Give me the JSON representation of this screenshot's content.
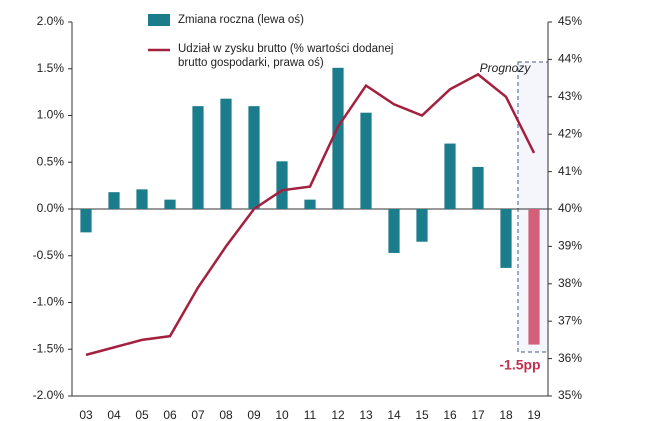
{
  "chart_data": {
    "type": "bar_line",
    "categories": [
      "03",
      "04",
      "05",
      "06",
      "07",
      "08",
      "09",
      "10",
      "11",
      "12",
      "13",
      "14",
      "15",
      "16",
      "17",
      "18",
      "19"
    ],
    "series": [
      {
        "name": "Zmiana roczna (lewa oś)",
        "type": "bar",
        "axis": "y",
        "color": "#1b7d8c",
        "colors": [
          "#1b7d8c",
          "#1b7d8c",
          "#1b7d8c",
          "#1b7d8c",
          "#1b7d8c",
          "#1b7d8c",
          "#1b7d8c",
          "#1b7d8c",
          "#1b7d8c",
          "#1b7d8c",
          "#1b7d8c",
          "#1b7d8c",
          "#1b7d8c",
          "#1b7d8c",
          "#1b7d8c",
          "#1b7d8c",
          "#d35f7a"
        ],
        "values": [
          -0.25,
          0.18,
          0.21,
          0.1,
          1.1,
          1.18,
          1.1,
          0.51,
          0.1,
          1.51,
          1.03,
          -0.47,
          -0.35,
          0.7,
          0.45,
          -0.63,
          -1.45
        ]
      },
      {
        "name": "Udział w zysku brutto (%  wartości dodanej brutto gospodarki, prawa oś)",
        "type": "line",
        "axis": "y2",
        "color": "#a3203f",
        "values": [
          36.1,
          36.3,
          36.5,
          36.6,
          37.9,
          39.0,
          40.0,
          40.5,
          40.6,
          42.2,
          43.3,
          42.8,
          42.5,
          43.2,
          43.6,
          43.0,
          41.5
        ]
      }
    ],
    "ylim": [
      -2,
      2
    ],
    "yticks": [
      {
        "value": -2,
        "label": "-2.0%"
      },
      {
        "value": -1.5,
        "label": "-1.5%"
      },
      {
        "value": -1,
        "label": "-1.0%"
      },
      {
        "value": -0.5,
        "label": "-0.5%"
      },
      {
        "value": 0,
        "label": "0.0%"
      },
      {
        "value": 0.5,
        "label": "0.5%"
      },
      {
        "value": 1,
        "label": "1.0%"
      },
      {
        "value": 1.5,
        "label": "1.5%"
      },
      {
        "value": 2,
        "label": "2.0%"
      }
    ],
    "y2lim": [
      35,
      45
    ],
    "y2ticks": [
      {
        "value": 35,
        "label": "35%"
      },
      {
        "value": 36,
        "label": "36%"
      },
      {
        "value": 37,
        "label": "37%"
      },
      {
        "value": 38,
        "label": "38%"
      },
      {
        "value": 39,
        "label": "39%"
      },
      {
        "value": 40,
        "label": "40%"
      },
      {
        "value": 41,
        "label": "41%"
      },
      {
        "value": 42,
        "label": "42%"
      },
      {
        "value": 43,
        "label": "43%"
      },
      {
        "value": 44,
        "label": "44%"
      },
      {
        "value": 45,
        "label": "45%"
      }
    ],
    "annotations": [
      "Prognozy",
      "-1.5pp"
    ]
  }
}
